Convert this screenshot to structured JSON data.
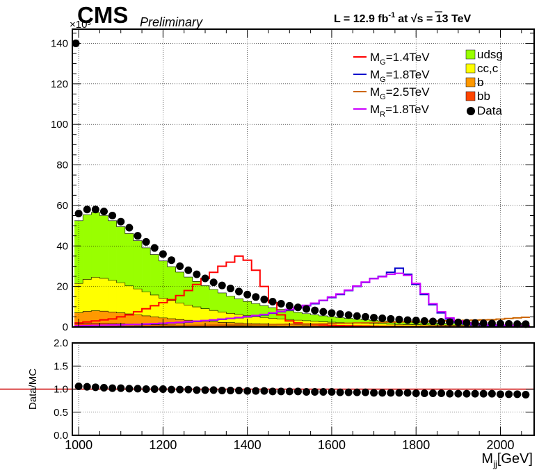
{
  "header": {
    "experiment": "CMS",
    "status": "Preliminary",
    "lumi_text": "L = 12.9 fb",
    "lumi_exp": "-1",
    "energy_text": "at  √s = 13 TeV"
  },
  "chart_data": [
    {
      "type": "area",
      "panel": "main",
      "stacked": true,
      "y_multiplier": "×10³",
      "xlim": [
        985,
        2080
      ],
      "ylim": [
        0,
        147
      ],
      "yticks": [
        0,
        20,
        40,
        60,
        80,
        100,
        120,
        140
      ],
      "grid": true,
      "legend_position": "top-right",
      "x": [
        1000,
        1020,
        1040,
        1060,
        1080,
        1100,
        1120,
        1140,
        1160,
        1180,
        1200,
        1220,
        1240,
        1260,
        1280,
        1300,
        1320,
        1340,
        1360,
        1380,
        1400,
        1420,
        1440,
        1460,
        1480,
        1500,
        1520,
        1540,
        1560,
        1580,
        1600,
        1620,
        1640,
        1660,
        1680,
        1700,
        1720,
        1740,
        1760,
        1780,
        1800,
        1820,
        1840,
        1860,
        1880,
        1900,
        1920,
        1940,
        1960,
        1980,
        2000,
        2020,
        2040,
        2060
      ],
      "series": [
        {
          "name": "bb",
          "color": "#ff4500",
          "values": [
            1.5,
            1.7,
            1.8,
            1.8,
            1.7,
            1.6,
            1.5,
            1.4,
            1.3,
            1.2,
            1.1,
            1.0,
            0.9,
            0.85,
            0.8,
            0.7,
            0.65,
            0.6,
            0.55,
            0.5,
            0.45,
            0.42,
            0.4,
            0.37,
            0.34,
            0.31,
            0.28,
            0.26,
            0.24,
            0.22,
            0.2,
            0.19,
            0.18,
            0.17,
            0.16,
            0.15,
            0.14,
            0.13,
            0.12,
            0.11,
            0.1,
            0.1,
            0.09,
            0.09,
            0.08,
            0.08,
            0.07,
            0.07,
            0.06,
            0.06,
            0.05,
            0.05,
            0.05,
            0.04
          ]
        },
        {
          "name": "b",
          "color": "#ff9900",
          "values": [
            5.5,
            6.0,
            6.2,
            6.0,
            5.7,
            5.4,
            5.0,
            4.6,
            4.2,
            3.8,
            3.4,
            3.1,
            2.8,
            2.5,
            2.3,
            2.1,
            1.9,
            1.7,
            1.6,
            1.5,
            1.35,
            1.25,
            1.15,
            1.05,
            0.95,
            0.88,
            0.8,
            0.74,
            0.68,
            0.63,
            0.58,
            0.54,
            0.5,
            0.46,
            0.43,
            0.4,
            0.37,
            0.34,
            0.32,
            0.3,
            0.28,
            0.26,
            0.24,
            0.22,
            0.21,
            0.2,
            0.18,
            0.17,
            0.16,
            0.15,
            0.14,
            0.13,
            0.12,
            0.11
          ]
        },
        {
          "name": "cc,c",
          "color": "#ffff00",
          "values": [
            14.5,
            15.8,
            16.5,
            16.2,
            15.6,
            14.8,
            13.8,
            12.8,
            11.8,
            10.8,
            9.8,
            9.0,
            8.2,
            7.5,
            6.8,
            6.2,
            5.6,
            5.1,
            4.6,
            4.2,
            3.8,
            3.5,
            3.2,
            2.9,
            2.7,
            2.5,
            2.3,
            2.1,
            1.9,
            1.75,
            1.6,
            1.5,
            1.38,
            1.27,
            1.17,
            1.08,
            1.0,
            0.93,
            0.86,
            0.8,
            0.74,
            0.69,
            0.64,
            0.6,
            0.56,
            0.52,
            0.48,
            0.45,
            0.42,
            0.39,
            0.36,
            0.34,
            0.32,
            0.3
          ]
        },
        {
          "name": "udsg",
          "color": "#99ff00",
          "values": [
            31.0,
            31.9,
            32.0,
            31.0,
            29.5,
            27.7,
            25.8,
            23.8,
            21.8,
            20.0,
            18.3,
            16.7,
            15.2,
            13.8,
            12.6,
            11.4,
            10.4,
            9.4,
            8.5,
            7.7,
            7.0,
            6.35,
            5.75,
            5.2,
            4.7,
            4.25,
            3.85,
            3.5,
            3.2,
            2.9,
            2.65,
            2.4,
            2.2,
            2.0,
            1.84,
            1.67,
            1.53,
            1.4,
            1.28,
            1.17,
            1.07,
            0.98,
            0.9,
            0.83,
            0.76,
            0.7,
            0.64,
            0.59,
            0.54,
            0.5,
            0.46,
            0.43,
            0.4,
            0.37
          ]
        }
      ],
      "data_points": {
        "name": "Data",
        "x": [
          1000,
          1020,
          1040,
          1060,
          1080,
          1100,
          1120,
          1140,
          1160,
          1180,
          1200,
          1220,
          1240,
          1260,
          1280,
          1300,
          1320,
          1340,
          1360,
          1380,
          1400,
          1420,
          1440,
          1460,
          1480,
          1500,
          1520,
          1540,
          1560,
          1580,
          1600,
          1620,
          1640,
          1660,
          1680,
          1700,
          1720,
          1740,
          1760,
          1780,
          1800,
          1820,
          1840,
          1860,
          1880,
          1900,
          1920,
          1940,
          1960,
          1980,
          2000,
          2020,
          2040,
          2060
        ],
        "y": [
          56,
          58,
          58,
          57,
          55,
          52,
          49,
          45,
          42,
          39,
          36,
          33,
          30,
          28,
          26,
          24,
          22,
          20.5,
          19,
          17.5,
          16,
          14.8,
          13.6,
          12.5,
          11.5,
          10.5,
          9.7,
          8.9,
          8.2,
          7.5,
          6.9,
          6.4,
          5.9,
          5.4,
          5.0,
          4.6,
          4.3,
          4.0,
          3.7,
          3.4,
          3.2,
          2.95,
          2.75,
          2.55,
          2.4,
          2.25,
          2.1,
          1.95,
          1.85,
          1.75,
          1.65,
          1.55,
          1.45,
          1.4
        ],
        "extra_point": {
          "x": 985,
          "y": 140
        }
      },
      "signals": [
        {
          "name": "M_G=1.4TeV",
          "color": "#ff0000",
          "x": [
            1000,
            1020,
            1040,
            1060,
            1080,
            1100,
            1120,
            1140,
            1160,
            1180,
            1200,
            1220,
            1240,
            1260,
            1280,
            1300,
            1320,
            1340,
            1360,
            1380,
            1400,
            1420,
            1440,
            1460,
            1480,
            1500,
            1520,
            1540,
            1560,
            1580,
            1600,
            1620,
            1640,
            1660,
            1680,
            1700,
            1720,
            1740,
            1760,
            1780,
            1800,
            1820,
            1840,
            1860,
            1880,
            1900,
            1920,
            1940,
            1960,
            1980,
            2000,
            2020,
            2040,
            2060
          ],
          "values": [
            2,
            2.5,
            3,
            3.5,
            4,
            5,
            6,
            7.5,
            9,
            10.5,
            12,
            13.5,
            15.5,
            18,
            21,
            24,
            27,
            30,
            32,
            35,
            33,
            28,
            20,
            12,
            6,
            3,
            2,
            1.5,
            1.2,
            1.0,
            0.8,
            0.7,
            0.6,
            0.5,
            0.45,
            0.4,
            0.35,
            0.3,
            0.3,
            0.25,
            0.25,
            0.2,
            0.2,
            0.2,
            0.15,
            0.15,
            0.15,
            0.1,
            0.1,
            0.1,
            0.1,
            0.1,
            0.1,
            0.1
          ]
        },
        {
          "name": "M_G=1.8TeV",
          "color": "#0000cc",
          "x": [
            1000,
            1020,
            1040,
            1060,
            1080,
            1100,
            1120,
            1140,
            1160,
            1180,
            1200,
            1220,
            1240,
            1260,
            1280,
            1300,
            1320,
            1340,
            1360,
            1380,
            1400,
            1420,
            1440,
            1460,
            1480,
            1500,
            1520,
            1540,
            1560,
            1580,
            1600,
            1620,
            1640,
            1660,
            1680,
            1700,
            1720,
            1740,
            1760,
            1780,
            1800,
            1820,
            1840,
            1860,
            1880,
            1900,
            1920,
            1940,
            1960,
            1980,
            2000,
            2020,
            2040,
            2060
          ],
          "values": [
            0.5,
            0.6,
            0.7,
            0.8,
            0.9,
            1.0,
            1.1,
            1.2,
            1.4,
            1.6,
            1.8,
            2.0,
            2.2,
            2.5,
            2.8,
            3.1,
            3.4,
            3.8,
            4.2,
            4.6,
            5.0,
            5.5,
            6.0,
            6.8,
            7.6,
            8.5,
            9.5,
            10.5,
            11.5,
            13,
            14.5,
            16,
            18,
            20,
            22,
            24,
            25,
            27,
            29,
            26,
            21,
            16,
            11,
            7,
            4,
            2.5,
            1.5,
            1,
            0.8,
            0.6,
            0.5,
            0.4,
            0.4,
            0.3
          ]
        },
        {
          "name": "M_G=2.5TeV",
          "color": "#cc6600",
          "x": [
            1000,
            1020,
            1040,
            1060,
            1080,
            1100,
            1120,
            1140,
            1160,
            1180,
            1200,
            1220,
            1240,
            1260,
            1280,
            1300,
            1320,
            1340,
            1360,
            1380,
            1400,
            1420,
            1440,
            1460,
            1480,
            1500,
            1520,
            1540,
            1560,
            1580,
            1600,
            1620,
            1640,
            1660,
            1680,
            1700,
            1720,
            1740,
            1760,
            1780,
            1800,
            1820,
            1840,
            1860,
            1880,
            1900,
            1920,
            1940,
            1960,
            1980,
            2000,
            2020,
            2040,
            2060
          ],
          "values": [
            0.3,
            0.3,
            0.35,
            0.35,
            0.4,
            0.4,
            0.45,
            0.5,
            0.5,
            0.55,
            0.6,
            0.65,
            0.7,
            0.75,
            0.8,
            0.85,
            0.9,
            0.95,
            1.0,
            1.05,
            1.1,
            1.15,
            1.2,
            1.25,
            1.3,
            1.35,
            1.4,
            1.45,
            1.5,
            1.6,
            1.7,
            1.8,
            1.9,
            2.0,
            2.1,
            2.2,
            2.3,
            2.4,
            2.5,
            2.6,
            2.7,
            2.8,
            2.9,
            3.0,
            3.1,
            3.2,
            3.3,
            3.4,
            3.5,
            3.6,
            3.9,
            4.2,
            4.5,
            4.8
          ]
        },
        {
          "name": "M_R=1.8TeV",
          "color": "#cc00ff",
          "x": [
            1000,
            1020,
            1040,
            1060,
            1080,
            1100,
            1120,
            1140,
            1160,
            1180,
            1200,
            1220,
            1240,
            1260,
            1280,
            1300,
            1320,
            1340,
            1360,
            1380,
            1400,
            1420,
            1440,
            1460,
            1480,
            1500,
            1520,
            1540,
            1560,
            1580,
            1600,
            1620,
            1640,
            1660,
            1680,
            1700,
            1720,
            1740,
            1760,
            1780,
            1800,
            1820,
            1840,
            1860,
            1880,
            1900,
            1920,
            1940,
            1960,
            1980,
            2000,
            2020,
            2040,
            2060
          ],
          "values": [
            0.6,
            0.7,
            0.8,
            0.9,
            1.0,
            1.1,
            1.2,
            1.3,
            1.5,
            1.7,
            1.9,
            2.1,
            2.3,
            2.6,
            2.9,
            3.2,
            3.5,
            3.9,
            4.3,
            4.7,
            5.2,
            5.7,
            6.2,
            7.0,
            7.8,
            8.7,
            9.7,
            10.7,
            11.8,
            13.2,
            14.8,
            16.3,
            18.2,
            20.2,
            22.2,
            23.8,
            24.8,
            26.0,
            26.5,
            25.5,
            21.5,
            16.5,
            11.5,
            7.5,
            4.5,
            3.0,
            2.0,
            1.5,
            1.2,
            1.0,
            0.9,
            0.8,
            0.7,
            0.6
          ]
        }
      ]
    },
    {
      "type": "scatter",
      "panel": "ratio",
      "ylabel": "Data/MC",
      "xlabel": "M_jj[GeV]",
      "xlim": [
        985,
        2080
      ],
      "ylim": [
        0,
        2
      ],
      "yticks": [
        0,
        0.5,
        1,
        1.5,
        2
      ],
      "xticks": [
        1000,
        1200,
        1400,
        1600,
        1800,
        2000
      ],
      "grid": true,
      "reference_line": 1.0,
      "reference_color": "#cc0000",
      "x": [
        1000,
        1020,
        1040,
        1060,
        1080,
        1100,
        1120,
        1140,
        1160,
        1180,
        1200,
        1220,
        1240,
        1260,
        1280,
        1300,
        1320,
        1340,
        1360,
        1380,
        1400,
        1420,
        1440,
        1460,
        1480,
        1500,
        1520,
        1540,
        1560,
        1580,
        1600,
        1620,
        1640,
        1660,
        1680,
        1700,
        1720,
        1740,
        1760,
        1780,
        1800,
        1820,
        1840,
        1860,
        1880,
        1900,
        1920,
        1940,
        1960,
        1980,
        2000,
        2020,
        2040,
        2060
      ],
      "y": [
        1.06,
        1.05,
        1.04,
        1.03,
        1.02,
        1.02,
        1.01,
        1.01,
        1.0,
        1.0,
        1.0,
        0.99,
        0.99,
        0.99,
        0.98,
        0.98,
        0.98,
        0.97,
        0.97,
        0.97,
        0.96,
        0.96,
        0.96,
        0.95,
        0.95,
        0.95,
        0.95,
        0.94,
        0.94,
        0.94,
        0.94,
        0.93,
        0.93,
        0.93,
        0.93,
        0.92,
        0.92,
        0.92,
        0.92,
        0.92,
        0.91,
        0.91,
        0.91,
        0.91,
        0.9,
        0.9,
        0.9,
        0.9,
        0.9,
        0.9,
        0.89,
        0.89,
        0.89,
        0.88
      ]
    }
  ]
}
